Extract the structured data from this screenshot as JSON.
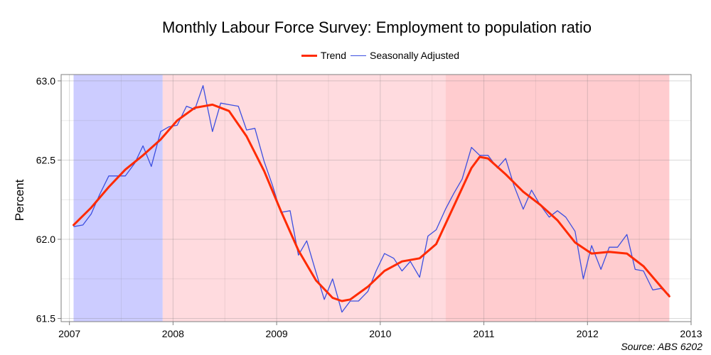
{
  "chart_data": {
    "type": "line",
    "title": "Monthly Labour Force Survey: Employment to population ratio",
    "ylabel": "Percent",
    "xlabel": "",
    "source": "Source: ABS 6202",
    "xlim": [
      2006.92,
      2013.0
    ],
    "ylim": [
      61.48,
      63.04
    ],
    "x_ticks": [
      "2007",
      "2008",
      "2009",
      "2010",
      "2011",
      "2012",
      "2013"
    ],
    "y_ticks": [
      "61.5",
      "62.0",
      "62.5",
      "63.0"
    ],
    "grid": true,
    "legend_position": "top",
    "shaded_periods": [
      {
        "start": 2007.04,
        "end": 2007.9,
        "color": "#ccccff"
      },
      {
        "start": 2007.9,
        "end": 2010.63,
        "color": "#ffdbdf"
      },
      {
        "start": 2010.63,
        "end": 2012.79,
        "color": "#ffcccf"
      }
    ],
    "series": [
      {
        "name": "Trend",
        "color": "#ff2a00",
        "x": [
          2007.04,
          2007.21,
          2007.38,
          2007.54,
          2007.71,
          2007.88,
          2008.04,
          2008.21,
          2008.38,
          2008.54,
          2008.71,
          2008.88,
          2009.04,
          2009.21,
          2009.38,
          2009.54,
          2009.63,
          2009.71,
          2009.88,
          2010.04,
          2010.21,
          2010.38,
          2010.54,
          2010.71,
          2010.88,
          2010.96,
          2011.04,
          2011.21,
          2011.38,
          2011.54,
          2011.71,
          2011.88,
          2012.04,
          2012.21,
          2012.38,
          2012.54,
          2012.71,
          2012.79
        ],
        "values": [
          62.09,
          62.2,
          62.33,
          62.44,
          62.53,
          62.63,
          62.75,
          62.83,
          62.85,
          62.81,
          62.65,
          62.43,
          62.18,
          61.93,
          61.74,
          61.63,
          61.61,
          61.62,
          61.7,
          61.8,
          61.86,
          61.88,
          61.97,
          62.21,
          62.45,
          62.52,
          62.51,
          62.41,
          62.3,
          62.22,
          62.12,
          61.98,
          61.91,
          61.92,
          61.91,
          61.83,
          61.7,
          61.64
        ]
      },
      {
        "name": "Seasonally Adjusted",
        "color": "#3c4fe0",
        "x": [
          2007.04,
          2007.13,
          2007.21,
          2007.29,
          2007.38,
          2007.46,
          2007.54,
          2007.63,
          2007.71,
          2007.79,
          2007.88,
          2007.96,
          2008.04,
          2008.13,
          2008.21,
          2008.29,
          2008.38,
          2008.46,
          2008.54,
          2008.63,
          2008.71,
          2008.79,
          2008.88,
          2008.96,
          2009.04,
          2009.13,
          2009.21,
          2009.29,
          2009.38,
          2009.46,
          2009.54,
          2009.63,
          2009.71,
          2009.79,
          2009.88,
          2009.96,
          2010.04,
          2010.13,
          2010.21,
          2010.29,
          2010.38,
          2010.46,
          2010.54,
          2010.63,
          2010.71,
          2010.79,
          2010.88,
          2010.96,
          2011.04,
          2011.13,
          2011.21,
          2011.29,
          2011.38,
          2011.46,
          2011.54,
          2011.63,
          2011.71,
          2011.79,
          2011.88,
          2011.96,
          2012.04,
          2012.13,
          2012.21,
          2012.29,
          2012.38,
          2012.46,
          2012.54,
          2012.63,
          2012.71,
          2012.79
        ],
        "values": [
          62.08,
          62.09,
          62.16,
          62.28,
          62.4,
          62.4,
          62.4,
          62.48,
          62.59,
          62.46,
          62.68,
          62.71,
          62.72,
          62.84,
          62.82,
          62.97,
          62.68,
          62.86,
          62.85,
          62.84,
          62.69,
          62.7,
          62.49,
          62.34,
          62.17,
          62.18,
          61.9,
          61.99,
          61.79,
          61.62,
          61.75,
          61.54,
          61.61,
          61.61,
          61.67,
          61.8,
          61.91,
          61.88,
          61.8,
          61.86,
          61.76,
          62.02,
          62.06,
          62.19,
          62.29,
          62.38,
          62.58,
          62.53,
          62.53,
          62.45,
          62.51,
          62.34,
          62.19,
          62.31,
          62.22,
          62.14,
          62.18,
          62.14,
          62.05,
          61.75,
          61.96,
          61.81,
          61.95,
          61.95,
          62.03,
          61.81,
          61.8,
          61.68,
          61.69,
          61.65
        ]
      }
    ]
  }
}
